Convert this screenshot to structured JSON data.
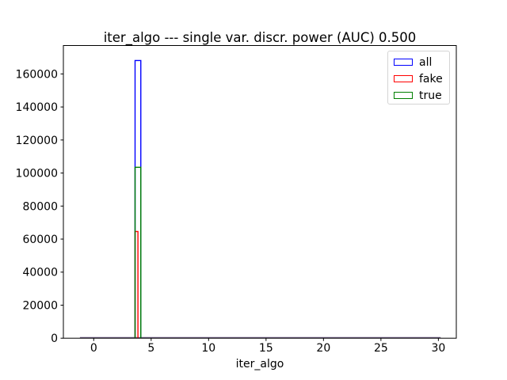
{
  "figure": {
    "background": "#ffffff"
  },
  "chart_data": {
    "type": "histogram-step",
    "title": "iter_algo --- single var. discr. power (AUC) 0.500",
    "xlabel": "iter_algo",
    "ylabel": "",
    "grid": false,
    "xlim": [
      -2.64,
      31.56
    ],
    "ylim": [
      0,
      177200
    ],
    "x_ticks": [
      0,
      5,
      10,
      15,
      20,
      25,
      30
    ],
    "y_ticks": [
      0,
      20000,
      40000,
      60000,
      80000,
      100000,
      120000,
      140000,
      160000
    ],
    "baseline_blend_color": "#6f5f85",
    "series": [
      {
        "name": "all",
        "color": "#0000ff",
        "range": [
          -1.2,
          30.2
        ],
        "bins": [
          {
            "x0": 3.6,
            "x1": 4.1,
            "count": 168100
          }
        ]
      },
      {
        "name": "fake",
        "color": "#ff0000",
        "range": [
          -1.2,
          30.2
        ],
        "bins": [
          {
            "x0": 3.6,
            "x1": 3.85,
            "count": 64600
          }
        ]
      },
      {
        "name": "true",
        "color": "#008000",
        "range": [
          -1.2,
          30.2
        ],
        "bins": [
          {
            "x0": 3.6,
            "x1": 4.1,
            "count": 103500
          }
        ]
      }
    ],
    "legend": {
      "position": "upper-right",
      "entries": [
        {
          "label": "all",
          "color": "#0000ff"
        },
        {
          "label": "fake",
          "color": "#ff0000"
        },
        {
          "label": "true",
          "color": "#008000"
        }
      ]
    }
  }
}
